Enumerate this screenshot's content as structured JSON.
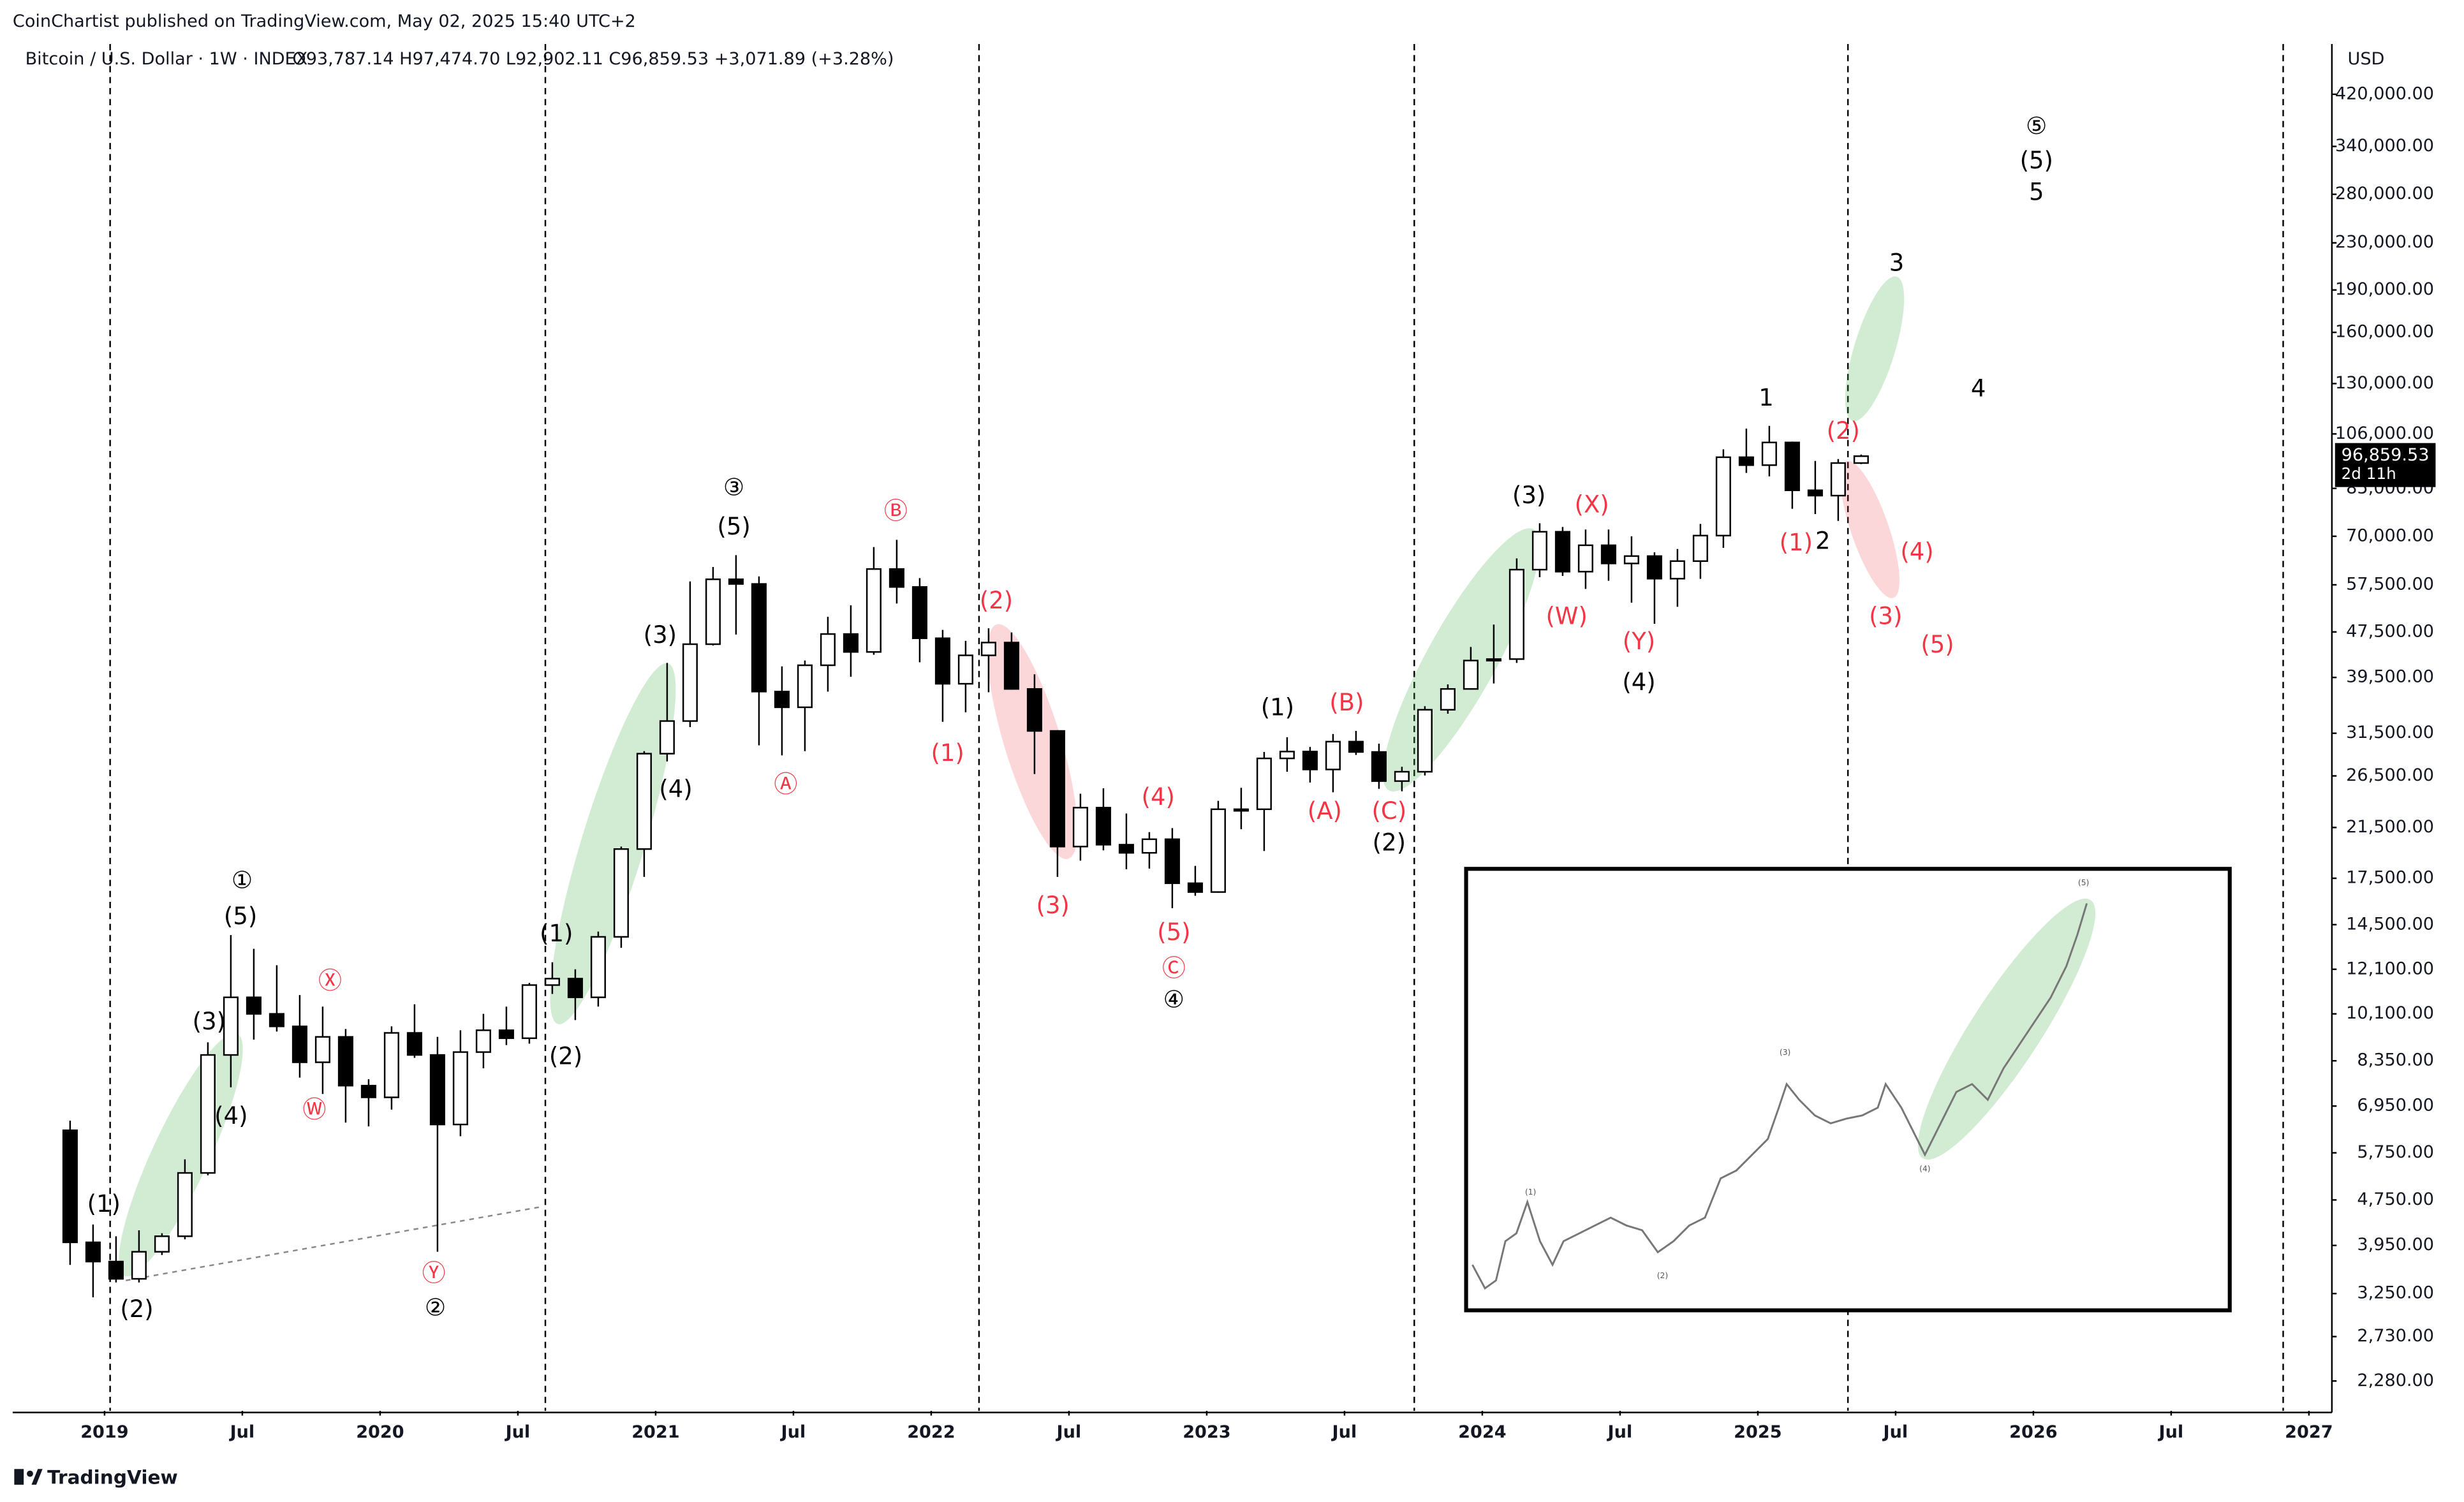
{
  "header": {
    "publisher": "CoinChartist published on TradingView.com, May 02, 2025 15:40 UTC+2",
    "symbol": "Bitcoin / U.S. Dollar · 1W · INDEX",
    "ohlc": "O93,787.14 H97,474.70 L92,902.11 C96,859.53 +3,071.89 (+3.28%)"
  },
  "footer": {
    "brand": "TradingView"
  },
  "price_tag": {
    "price": "96,859.53",
    "countdown": "2d 11h"
  },
  "chart_data": {
    "type": "candlestick",
    "currency": "USD",
    "log_scale": true,
    "grid": false,
    "up_color": "#ffffff",
    "down_color": "#000000",
    "edge_color": "#000000",
    "x": [
      "2018-11",
      "2018-12",
      "2019-01",
      "2019-02",
      "2019-03",
      "2019-04",
      "2019-05",
      "2019-06",
      "2019-07",
      "2019-08",
      "2019-09",
      "2019-10",
      "2019-11",
      "2019-12",
      "2020-01",
      "2020-02",
      "2020-03",
      "2020-04",
      "2020-05",
      "2020-06",
      "2020-07",
      "2020-08",
      "2020-09",
      "2020-10",
      "2020-11",
      "2020-12",
      "2021-01",
      "2021-02",
      "2021-03",
      "2021-04",
      "2021-05",
      "2021-06",
      "2021-07",
      "2021-08",
      "2021-09",
      "2021-10",
      "2021-11",
      "2021-12",
      "2022-01",
      "2022-02",
      "2022-03",
      "2022-04",
      "2022-05",
      "2022-06",
      "2022-07",
      "2022-08",
      "2022-09",
      "2022-10",
      "2022-11",
      "2022-12",
      "2023-01",
      "2023-02",
      "2023-03",
      "2023-04",
      "2023-05",
      "2023-06",
      "2023-07",
      "2023-08",
      "2023-09",
      "2023-10",
      "2023-11",
      "2023-12",
      "2024-01",
      "2024-02",
      "2024-03",
      "2024-04",
      "2024-05",
      "2024-06",
      "2024-07",
      "2024-08",
      "2024-09",
      "2024-10",
      "2024-11",
      "2024-12",
      "2025-01",
      "2025-02",
      "2025-03",
      "2025-04",
      "2025-05"
    ],
    "open": [
      6300,
      4000,
      3700,
      3450,
      3850,
      4100,
      5300,
      8550,
      10800,
      10100,
      9600,
      8300,
      9200,
      7550,
      7200,
      9350,
      8550,
      6450,
      8650,
      9450,
      9150,
      11350,
      11650,
      10800,
      13800,
      19700,
      29000,
      33100,
      45200,
      58800,
      57700,
      37300,
      35000,
      41500,
      47100,
      43800,
      61300,
      57000,
      46300,
      38500,
      43200,
      45500,
      37700,
      31800,
      19900,
      23300,
      20050,
      19400,
      20500,
      17150,
      16550,
      23150,
      23150,
      28450,
      29250,
      27200,
      30450,
      29200,
      25950,
      26950,
      34650,
      37700,
      42300,
      42550,
      61150,
      71300,
      60650,
      67500,
      62700,
      64600,
      58950,
      63300,
      70200,
      96450,
      93400,
      102400,
      84350,
      82550,
      94200
    ],
    "high": [
      6550,
      4300,
      4100,
      4200,
      4150,
      5600,
      9000,
      13900,
      13150,
      12300,
      10900,
      10400,
      9500,
      7750,
      9600,
      10500,
      9200,
      9450,
      10100,
      10400,
      11450,
      12450,
      12100,
      14100,
      19900,
      29300,
      41900,
      58300,
      61800,
      64850,
      59500,
      41300,
      42300,
      50500,
      52900,
      67000,
      69000,
      59100,
      47900,
      45800,
      48200,
      47400,
      40000,
      31900,
      24650,
      25200,
      22750,
      21100,
      21450,
      18400,
      23950,
      25250,
      29200,
      31000,
      29800,
      31400,
      31800,
      30200,
      27500,
      35150,
      38400,
      44700,
      48950,
      64000,
      73800,
      72700,
      71950,
      71950,
      70000,
      65600,
      66500,
      73600,
      99600,
      108300,
      109500,
      102750,
      95000,
      95750,
      97500
    ],
    "low": [
      3650,
      3200,
      3400,
      3400,
      3800,
      4050,
      5250,
      7500,
      9100,
      9400,
      7800,
      7300,
      6500,
      6400,
      6850,
      8450,
      3850,
      6150,
      8100,
      8900,
      8950,
      10950,
      9850,
      10400,
      13200,
      17600,
      28100,
      32300,
      44950,
      47000,
      30000,
      28800,
      29300,
      37300,
      39600,
      43300,
      53300,
      42000,
      33000,
      34300,
      37200,
      37600,
      26700,
      17600,
      18800,
      19600,
      18150,
      18200,
      15500,
      16300,
      16500,
      21350,
      19550,
      26950,
      25800,
      24800,
      28850,
      25150,
      24900,
      26550,
      34100,
      37600,
      38550,
      41900,
      59300,
      59600,
      56550,
      58450,
      53500,
      49100,
      52600,
      58900,
      66800,
      90500,
      89250,
      78250,
      76600,
      74500,
      93800
    ],
    "close": [
      4000,
      3700,
      3450,
      3850,
      4100,
      5300,
      8550,
      10800,
      10100,
      9600,
      8300,
      9200,
      7550,
      7200,
      9350,
      8550,
      6450,
      8650,
      9450,
      9150,
      11350,
      11650,
      10800,
      13800,
      19700,
      29000,
      33100,
      45200,
      58800,
      57700,
      37300,
      35000,
      41500,
      47100,
      43800,
      61300,
      57000,
      46300,
      38500,
      43200,
      45500,
      37700,
      31800,
      19900,
      23300,
      20050,
      19400,
      20500,
      17150,
      16550,
      23150,
      23150,
      28450,
      29250,
      27200,
      30450,
      29200,
      25950,
      26950,
      34650,
      37700,
      42300,
      42550,
      61150,
      71300,
      60650,
      67500,
      62700,
      64600,
      58950,
      63300,
      70200,
      96450,
      93400,
      102400,
      84350,
      82550,
      94200,
      96860
    ],
    "xlim": [
      "2018-09",
      "2027-02"
    ],
    "xticks": [
      {
        "value": "2019-01",
        "label": "2019"
      },
      {
        "value": "2019-07",
        "label": "Jul"
      },
      {
        "value": "2020-01",
        "label": "2020"
      },
      {
        "value": "2020-07",
        "label": "Jul"
      },
      {
        "value": "2021-01",
        "label": "2021"
      },
      {
        "value": "2021-07",
        "label": "Jul"
      },
      {
        "value": "2022-01",
        "label": "2022"
      },
      {
        "value": "2022-07",
        "label": "Jul"
      },
      {
        "value": "2023-01",
        "label": "2023"
      },
      {
        "value": "2023-07",
        "label": "Jul"
      },
      {
        "value": "2024-01",
        "label": "2024"
      },
      {
        "value": "2024-07",
        "label": "Jul"
      },
      {
        "value": "2025-01",
        "label": "2025"
      },
      {
        "value": "2025-07",
        "label": "Jul"
      },
      {
        "value": "2026-01",
        "label": "2026"
      },
      {
        "value": "2026-07",
        "label": "Jul"
      },
      {
        "value": "2027-01",
        "label": "2027"
      }
    ],
    "ylim": [
      2020,
      515000
    ],
    "yticks": [
      {
        "value": 420000,
        "label": "420,000.00"
      },
      {
        "value": 340000,
        "label": "340,000.00"
      },
      {
        "value": 280000,
        "label": "280,000.00"
      },
      {
        "value": 230000,
        "label": "230,000.00"
      },
      {
        "value": 190000,
        "label": "190,000.00"
      },
      {
        "value": 160000,
        "label": "160,000.00"
      },
      {
        "value": 130000,
        "label": "130,000.00"
      },
      {
        "value": 106000,
        "label": "106,000.00"
      },
      {
        "value": 85000,
        "label": "85,000.00"
      },
      {
        "value": 70000,
        "label": "70,000.00"
      },
      {
        "value": 57500,
        "label": "57,500.00"
      },
      {
        "value": 47500,
        "label": "47,500.00"
      },
      {
        "value": 39500,
        "label": "39,500.00"
      },
      {
        "value": 31500,
        "label": "31,500.00"
      },
      {
        "value": 26500,
        "label": "26,500.00"
      },
      {
        "value": 21500,
        "label": "21,500.00"
      },
      {
        "value": 17500,
        "label": "17,500.00"
      },
      {
        "value": 14500,
        "label": "14,500.00"
      },
      {
        "value": 12100,
        "label": "12,100.00"
      },
      {
        "value": 10100,
        "label": "10,100.00"
      },
      {
        "value": 8350,
        "label": "8,350.00"
      },
      {
        "value": 6950,
        "label": "6,950.00"
      },
      {
        "value": 5750,
        "label": "5,750.00"
      },
      {
        "value": 4750,
        "label": "4,750.00"
      },
      {
        "value": 3950,
        "label": "3,950.00"
      },
      {
        "value": 3250,
        "label": "3,250.00"
      },
      {
        "value": 2730,
        "label": "2,730.00"
      },
      {
        "value": 2280,
        "label": "2,280.00"
      }
    ],
    "annotations": [
      {
        "text": "①",
        "color": "#000000"
      },
      {
        "text": "(5)",
        "color": "#000000"
      },
      {
        "text": "(3)",
        "color": "#000000"
      },
      {
        "text": "(4)",
        "color": "#000000"
      },
      {
        "text": "(1)",
        "color": "#000000"
      },
      {
        "text": "(2)",
        "color": "#000000"
      },
      {
        "text": "③",
        "color": "#000000"
      },
      {
        "text": "(5)",
        "color": "#000000"
      },
      {
        "text": "(3)",
        "color": "#000000"
      },
      {
        "text": "(4)",
        "color": "#000000"
      },
      {
        "text": "(1)",
        "color": "#000000"
      },
      {
        "text": "(2)",
        "color": "#000000"
      },
      {
        "text": "②",
        "color": "#000000"
      },
      {
        "text": "④",
        "color": "#000000"
      },
      {
        "text": "(1)",
        "color": "#000000"
      },
      {
        "text": "(2)",
        "color": "#000000"
      },
      {
        "text": "(3)",
        "color": "#000000"
      },
      {
        "text": "(4)",
        "color": "#000000"
      },
      {
        "text": "1",
        "color": "#000000"
      },
      {
        "text": "2",
        "color": "#000000"
      },
      {
        "text": "3",
        "color": "#000000"
      },
      {
        "text": "4",
        "color": "#000000"
      },
      {
        "text": "⑤",
        "color": "#000000"
      },
      {
        "text": "(5)",
        "color": "#000000"
      },
      {
        "text": "5",
        "color": "#000000"
      },
      {
        "text": "Ⓐ",
        "color": "#f23645"
      },
      {
        "text": "Ⓑ",
        "color": "#f23645"
      },
      {
        "text": "Ⓦ",
        "color": "#f23645"
      },
      {
        "text": "Ⓧ",
        "color": "#f23645"
      },
      {
        "text": "Ⓨ",
        "color": "#f23645"
      },
      {
        "text": "(2)",
        "color": "#f23645"
      },
      {
        "text": "(1)",
        "color": "#f23645"
      },
      {
        "text": "(3)",
        "color": "#f23645"
      },
      {
        "text": "(4)",
        "color": "#f23645"
      },
      {
        "text": "(5)",
        "color": "#f23645"
      },
      {
        "text": "Ⓒ",
        "color": "#f23645"
      },
      {
        "text": "(B)",
        "color": "#f23645"
      },
      {
        "text": "(A)",
        "color": "#f23645"
      },
      {
        "text": "(C)",
        "color": "#f23645"
      },
      {
        "text": "(X)",
        "color": "#f23645"
      },
      {
        "text": "(W)",
        "color": "#f23645"
      },
      {
        "text": "(Y)",
        "color": "#f23645"
      },
      {
        "text": "(1)",
        "color": "#f23645"
      },
      {
        "text": "(2)",
        "color": "#f23645"
      },
      {
        "text": "(4)",
        "color": "#f23645"
      },
      {
        "text": "(3)",
        "color": "#f23645"
      },
      {
        "text": "(5)",
        "color": "#f23645"
      }
    ],
    "inset": {
      "labels": [
        "(1)",
        "(2)",
        "(3)",
        "(4)",
        "(5)"
      ]
    }
  }
}
